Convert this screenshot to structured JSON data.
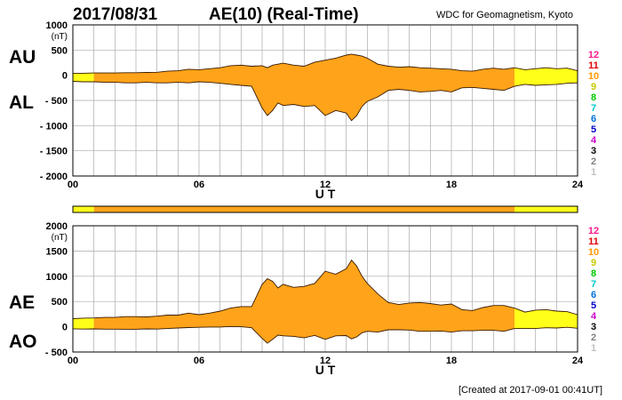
{
  "header": {
    "date": "2017/08/31",
    "title": "AE(10) (Real-Time)",
    "source": "WDC for Geomagnetism, Kyoto"
  },
  "footer": {
    "created": "[Created at 2017-09-01 00:41UT]"
  },
  "colors": {
    "fill": "#ffa31a",
    "fill_low_stations": "#ffff1a",
    "grid": "#aaaaaa",
    "line": "#3a1a00",
    "legend": [
      "#c0c0c0",
      "#808080",
      "#000000",
      "#cc00cc",
      "#0000cc",
      "#0070e0",
      "#00c8c8",
      "#00c800",
      "#c8c800",
      "#ff9a00",
      "#e00000",
      "#ff1a8c"
    ]
  },
  "legend": {
    "labels": [
      "1",
      "2",
      "3",
      "4",
      "5",
      "6",
      "7",
      "8",
      "9",
      "10",
      "11",
      "12"
    ]
  },
  "chart_data": [
    {
      "type": "area",
      "name": "AU/AL",
      "unit_label": "(nT)",
      "xlabel": "U T",
      "xlim": [
        0,
        24
      ],
      "ylim": [
        -2000,
        1000
      ],
      "x_ticks": [
        "00",
        "06",
        "12",
        "18",
        "24"
      ],
      "y_ticks": [
        "1000",
        "500",
        "0",
        "- 500",
        "- 1000",
        "- 1500",
        "- 2000"
      ],
      "y_tick_values": [
        1000,
        500,
        0,
        -500,
        -1000,
        -1500,
        -2000
      ],
      "upper_label": "AU",
      "lower_label": "AL",
      "x_hours": [
        0,
        0.5,
        1,
        1.5,
        2,
        2.5,
        3,
        3.5,
        4,
        4.5,
        5,
        5.5,
        6,
        6.5,
        7,
        7.5,
        8,
        8.5,
        9,
        9.25,
        9.5,
        9.75,
        10,
        10.5,
        11,
        11.5,
        12,
        12.5,
        13,
        13.25,
        13.5,
        13.75,
        14,
        14.5,
        15,
        15.5,
        16,
        16.5,
        17,
        17.5,
        18,
        18.5,
        19,
        19.5,
        20,
        20.5,
        21,
        21.5,
        22,
        22.5,
        23,
        23.5,
        24
      ],
      "upper_values": [
        40,
        40,
        45,
        45,
        45,
        50,
        50,
        55,
        60,
        80,
        90,
        120,
        110,
        130,
        150,
        190,
        200,
        180,
        190,
        150,
        200,
        220,
        240,
        200,
        180,
        260,
        300,
        340,
        400,
        420,
        400,
        380,
        340,
        220,
        180,
        160,
        170,
        150,
        140,
        130,
        120,
        90,
        80,
        120,
        140,
        120,
        150,
        110,
        130,
        150,
        130,
        140,
        90
      ],
      "lower_values": [
        -120,
        -130,
        -130,
        -140,
        -140,
        -150,
        -150,
        -140,
        -150,
        -150,
        -140,
        -150,
        -130,
        -140,
        -160,
        -180,
        -200,
        -220,
        -650,
        -800,
        -700,
        -550,
        -600,
        -580,
        -620,
        -600,
        -800,
        -700,
        -750,
        -900,
        -800,
        -620,
        -520,
        -430,
        -300,
        -280,
        -300,
        -330,
        -320,
        -300,
        -330,
        -250,
        -240,
        -260,
        -280,
        -300,
        -220,
        -180,
        -200,
        -190,
        -180,
        -160,
        -150
      ]
    },
    {
      "type": "area",
      "name": "AE/AO",
      "unit_label": "(nT)",
      "xlabel": "U T",
      "xlim": [
        0,
        24
      ],
      "ylim": [
        -500,
        2000
      ],
      "x_ticks": [
        "00",
        "06",
        "12",
        "18",
        "24"
      ],
      "y_ticks": [
        "2000",
        "1500",
        "1000",
        "500",
        "0",
        "- 500"
      ],
      "y_tick_values": [
        2000,
        1500,
        1000,
        500,
        0,
        -500
      ],
      "upper_label": "AE",
      "lower_label": "AO",
      "x_hours": [
        0,
        0.5,
        1,
        1.5,
        2,
        2.5,
        3,
        3.5,
        4,
        4.5,
        5,
        5.5,
        6,
        6.5,
        7,
        7.5,
        8,
        8.5,
        9,
        9.25,
        9.5,
        9.75,
        10,
        10.5,
        11,
        11.5,
        12,
        12.5,
        13,
        13.25,
        13.5,
        13.75,
        14,
        14.5,
        15,
        15.5,
        16,
        16.5,
        17,
        17.5,
        18,
        18.5,
        19,
        19.5,
        20,
        20.5,
        21,
        21.5,
        22,
        22.5,
        23,
        23.5,
        24
      ],
      "upper_values": [
        160,
        170,
        175,
        185,
        185,
        200,
        200,
        195,
        210,
        230,
        230,
        270,
        240,
        270,
        310,
        370,
        400,
        400,
        840,
        950,
        900,
        770,
        840,
        780,
        800,
        860,
        1100,
        1040,
        1150,
        1320,
        1200,
        1000,
        860,
        650,
        480,
        440,
        470,
        480,
        460,
        430,
        450,
        340,
        320,
        380,
        420,
        420,
        370,
        290,
        330,
        340,
        310,
        300,
        240
      ],
      "lower_values": [
        -40,
        -45,
        -42,
        -48,
        -48,
        -50,
        -50,
        -42,
        -45,
        -35,
        -25,
        -15,
        -10,
        -5,
        -5,
        5,
        0,
        -20,
        -230,
        -325,
        -250,
        -165,
        -180,
        -190,
        -220,
        -170,
        -250,
        -180,
        -175,
        -240,
        -200,
        -120,
        -90,
        -105,
        -60,
        -60,
        -65,
        -90,
        -90,
        -85,
        -105,
        -80,
        -80,
        -70,
        -70,
        -90,
        -35,
        -35,
        -35,
        -20,
        -25,
        -10,
        -30
      ]
    }
  ],
  "quality_bar": {
    "segments": [
      {
        "start": 0,
        "end": 1,
        "level": "low"
      },
      {
        "start": 1,
        "end": 21,
        "level": "full"
      },
      {
        "start": 21,
        "end": 24,
        "level": "low"
      }
    ]
  }
}
